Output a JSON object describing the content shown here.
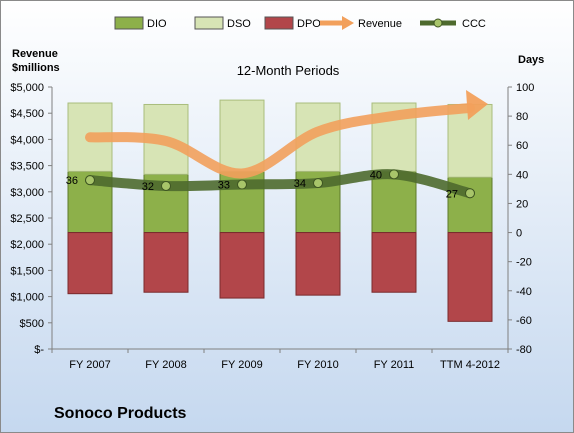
{
  "company_name": "Sonoco Products",
  "chart_data": {
    "type": "bar",
    "title": "12-Month Periods",
    "left_axis_title": [
      "Revenue",
      "$millions"
    ],
    "right_axis_title": "Days",
    "categories": [
      "FY 2007",
      "FY 2008",
      "FY 2009",
      "FY 2010",
      "FY 2011",
      "TTM 4-2012"
    ],
    "left_axis": {
      "min": 0,
      "max": 5000,
      "step": 500,
      "tick_labels": [
        "$-",
        "$500",
        "$1,000",
        "$1,500",
        "$2,000",
        "$2,500",
        "$3,000",
        "$3,500",
        "$4,000",
        "$4,500",
        "$5,000"
      ]
    },
    "right_axis": {
      "min": -80,
      "max": 100,
      "step": 20,
      "tick_labels": [
        "-80",
        "-60",
        "-40",
        "-20",
        "0",
        "20",
        "40",
        "60",
        "80",
        "100"
      ]
    },
    "grid": false,
    "legend_position": "top",
    "series": [
      {
        "name": "DIO",
        "axis": "right",
        "kind": "stacked-bar-positive",
        "values": [
          42,
          40,
          42,
          42,
          42,
          38
        ],
        "color": "#8db04a"
      },
      {
        "name": "DSO",
        "axis": "right",
        "kind": "stacked-bar-positive",
        "values": [
          47,
          48,
          49,
          47,
          47,
          50
        ],
        "color": "#d7e4b5"
      },
      {
        "name": "DPO",
        "axis": "right",
        "kind": "stacked-bar-negative",
        "values": [
          -42,
          -41,
          -45,
          -43,
          -41,
          -61
        ],
        "color": "#b2464a"
      },
      {
        "name": "Revenue",
        "axis": "left",
        "kind": "line",
        "values": [
          4040,
          3970,
          3350,
          4150,
          4450,
          4600
        ],
        "color": "#f2a05c"
      },
      {
        "name": "CCC",
        "axis": "right",
        "kind": "line",
        "values": [
          36,
          32,
          33,
          34,
          40,
          27
        ],
        "color": "#4e6a2e"
      }
    ],
    "data_labels": {
      "series": "CCC",
      "values": [
        "36",
        "32",
        "33",
        "34",
        "40",
        "27"
      ]
    }
  }
}
